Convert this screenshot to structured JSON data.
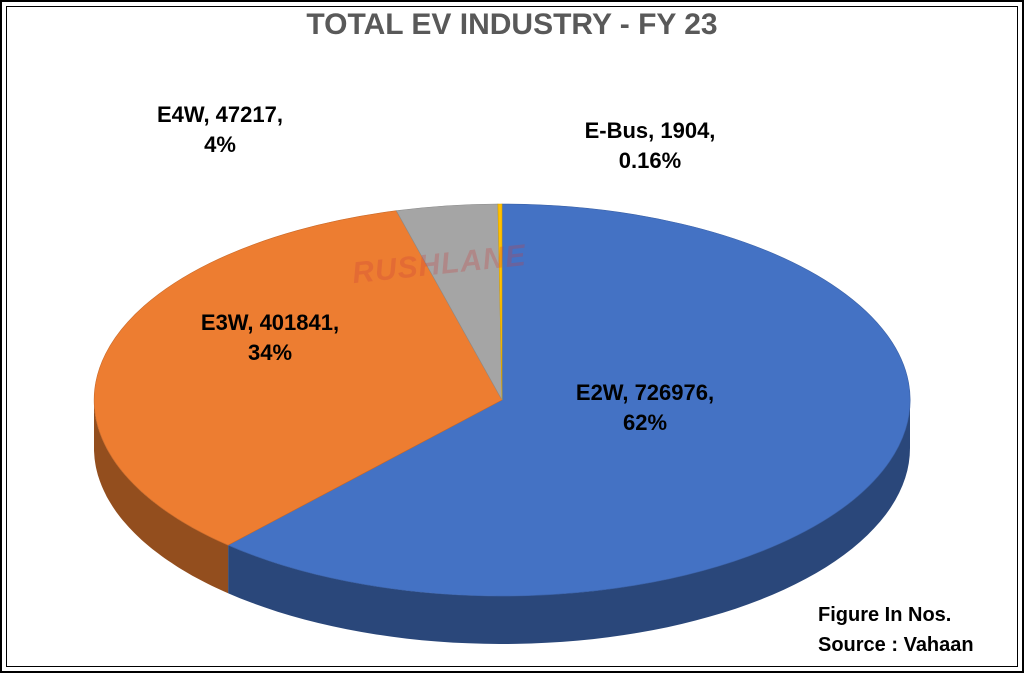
{
  "title": "TOTAL EV INDUSTRY - FY 23",
  "watermark": "RUSHLANE",
  "notes": {
    "unit": "Figure In Nos.",
    "source": "Source : Vahaan"
  },
  "chart_data": {
    "type": "pie",
    "title": "TOTAL EV INDUSTRY - FY 23",
    "slices": [
      {
        "label": "E2W",
        "value": 726976,
        "percent": "62%",
        "color": "#4472c4",
        "label_text": "E2W, 726976,",
        "pct_text": "62%"
      },
      {
        "label": "E3W",
        "value": 401841,
        "percent": "34%",
        "color": "#ed7d31",
        "label_text": "E3W, 401841,",
        "pct_text": "34%"
      },
      {
        "label": "E4W",
        "value": 47217,
        "percent": "4%",
        "color": "#a5a5a5",
        "label_text": "E4W, 47217,",
        "pct_text": "4%"
      },
      {
        "label": "E-Bus",
        "value": 1904,
        "percent": "0.16%",
        "color": "#ffc000",
        "label_text": "E-Bus, 1904,",
        "pct_text": "0.16%"
      }
    ]
  }
}
